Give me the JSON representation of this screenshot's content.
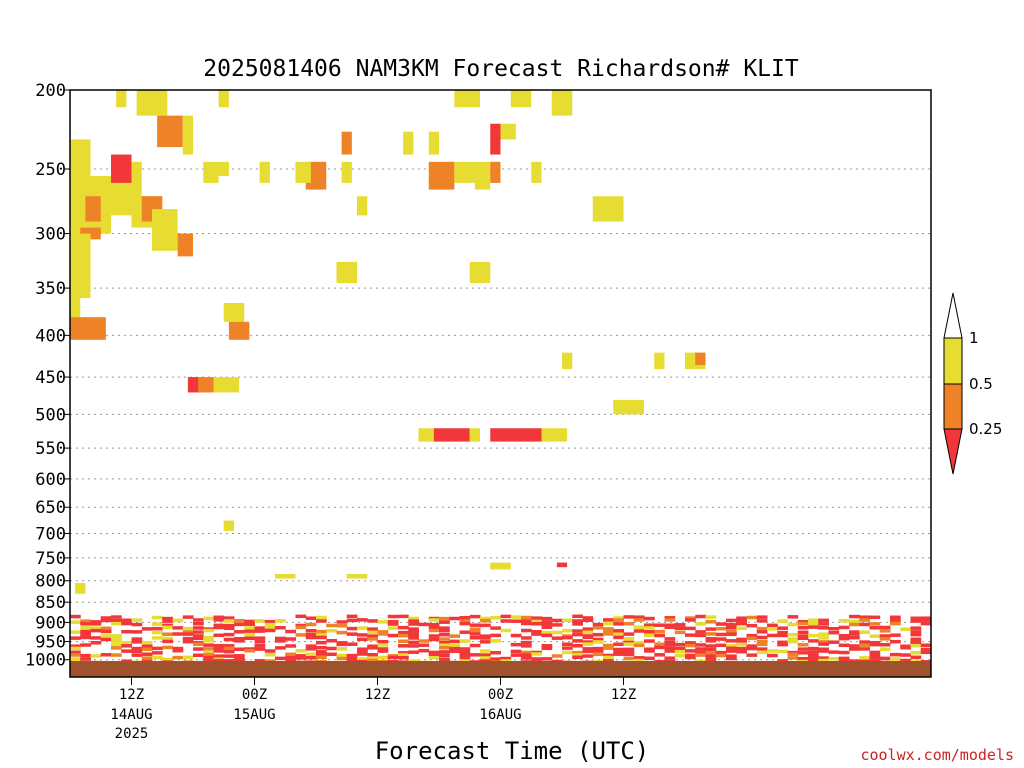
{
  "chart_data": {
    "type": "heatmap",
    "title": "2025081406 NAM3KM Forecast Richardson# KLIT",
    "xlabel": "Forecast Time (UTC)",
    "ylabel": "",
    "y_scale": "log-pressure",
    "y_range_hpa": [
      1050,
      200
    ],
    "y_ticks": [
      "200",
      "250",
      "300",
      "350",
      "400",
      "450",
      "500",
      "550",
      "600",
      "650",
      "700",
      "750",
      "800",
      "850",
      "900",
      "950",
      "1000"
    ],
    "x_range_hours": [
      0,
      84
    ],
    "x_ticks": [
      {
        "hour": 6,
        "label": "12Z",
        "sub": "14AUG",
        "sub2": "2025"
      },
      {
        "hour": 18,
        "label": "00Z",
        "sub": "15AUG",
        "sub2": ""
      },
      {
        "hour": 30,
        "label": "12Z",
        "sub": "",
        "sub2": ""
      },
      {
        "hour": 42,
        "label": "00Z",
        "sub": "16AUG",
        "sub2": ""
      },
      {
        "hour": 54,
        "label": "12Z",
        "sub": "",
        "sub2": ""
      }
    ],
    "grid": "dotted horizontal at pressure ticks",
    "legend": "colorbar right",
    "colorbar": {
      "labels": [
        "1",
        "0.5",
        "0.25"
      ],
      "colors": [
        "#ffffff",
        "#e6dc32",
        "#ee8226",
        "#f2373a"
      ]
    },
    "surface_color": "#a0522d",
    "cells": [
      {
        "h": [
          0,
          2
        ],
        "p": [
          310,
          230
        ],
        "c": "#e6dc32"
      },
      {
        "h": [
          2,
          4
        ],
        "p": [
          300,
          255
        ],
        "c": "#e6dc32"
      },
      {
        "h": [
          1.5,
          3
        ],
        "p": [
          290,
          270
        ],
        "c": "#ee8226"
      },
      {
        "h": [
          1,
          3
        ],
        "p": [
          305,
          295
        ],
        "c": "#ee8226"
      },
      {
        "h": [
          0,
          2
        ],
        "p": [
          360,
          300
        ],
        "c": "#e6dc32"
      },
      {
        "h": [
          0,
          1
        ],
        "p": [
          395,
          330
        ],
        "c": "#e6dc32"
      },
      {
        "h": [
          0,
          3.5
        ],
        "p": [
          405,
          380
        ],
        "c": "#ee8226"
      },
      {
        "h": [
          4,
          7
        ],
        "p": [
          285,
          245
        ],
        "c": "#e6dc32"
      },
      {
        "h": [
          4,
          6
        ],
        "p": [
          260,
          240
        ],
        "c": "#f2373a"
      },
      {
        "h": [
          6,
          9
        ],
        "p": [
          295,
          270
        ],
        "c": "#e6dc32"
      },
      {
        "h": [
          7,
          9
        ],
        "p": [
          290,
          270
        ],
        "c": "#ee8226"
      },
      {
        "h": [
          8,
          10.5
        ],
        "p": [
          315,
          280
        ],
        "c": "#e6dc32"
      },
      {
        "h": [
          10.5,
          12
        ],
        "p": [
          320,
          300
        ],
        "c": "#ee8226"
      },
      {
        "h": [
          8.5,
          11
        ],
        "p": [
          235,
          215
        ],
        "c": "#ee8226"
      },
      {
        "h": [
          6.5,
          9.5
        ],
        "p": [
          215,
          200
        ],
        "c": "#e6dc32"
      },
      {
        "h": [
          11,
          12
        ],
        "p": [
          240,
          215
        ],
        "c": "#e6dc32"
      },
      {
        "h": [
          4.5,
          5.5
        ],
        "p": [
          210,
          200
        ],
        "c": "#e6dc32"
      },
      {
        "h": [
          13,
          14.5
        ],
        "p": [
          260,
          245
        ],
        "c": "#e6dc32"
      },
      {
        "h": [
          14.5,
          15.5
        ],
        "p": [
          255,
          245
        ],
        "c": "#e6dc32"
      },
      {
        "h": [
          14.5,
          15.5
        ],
        "p": [
          210,
          200
        ],
        "c": "#e6dc32"
      },
      {
        "h": [
          15,
          17
        ],
        "p": [
          385,
          365
        ],
        "c": "#e6dc32"
      },
      {
        "h": [
          15.5,
          17.5
        ],
        "p": [
          405,
          385
        ],
        "c": "#ee8226"
      },
      {
        "h": [
          11.5,
          13
        ],
        "p": [
          470,
          450
        ],
        "c": "#f2373a"
      },
      {
        "h": [
          12.5,
          14
        ],
        "p": [
          470,
          450
        ],
        "c": "#ee8226"
      },
      {
        "h": [
          14,
          16.5
        ],
        "p": [
          470,
          450
        ],
        "c": "#e6dc32"
      },
      {
        "h": [
          18.5,
          19.5
        ],
        "p": [
          260,
          245
        ],
        "c": "#e6dc32"
      },
      {
        "h": [
          23,
          25
        ],
        "p": [
          265,
          245
        ],
        "c": "#ee8226"
      },
      {
        "h": [
          22,
          23.5
        ],
        "p": [
          260,
          245
        ],
        "c": "#e6dc32"
      },
      {
        "h": [
          26.5,
          27.5
        ],
        "p": [
          240,
          225
        ],
        "c": "#ee8226"
      },
      {
        "h": [
          26.5,
          27.5
        ],
        "p": [
          260,
          245
        ],
        "c": "#e6dc32"
      },
      {
        "h": [
          28,
          29
        ],
        "p": [
          285,
          270
        ],
        "c": "#e6dc32"
      },
      {
        "h": [
          26,
          28
        ],
        "p": [
          345,
          325
        ],
        "c": "#e6dc32"
      },
      {
        "h": [
          32.5,
          33.5
        ],
        "p": [
          240,
          225
        ],
        "c": "#e6dc32"
      },
      {
        "h": [
          35,
          36
        ],
        "p": [
          240,
          225
        ],
        "c": "#e6dc32"
      },
      {
        "h": [
          35,
          37.5
        ],
        "p": [
          265,
          245
        ],
        "c": "#ee8226"
      },
      {
        "h": [
          37.5,
          39.5
        ],
        "p": [
          260,
          245
        ],
        "c": "#e6dc32"
      },
      {
        "h": [
          39.5,
          41
        ],
        "p": [
          265,
          245
        ],
        "c": "#e6dc32"
      },
      {
        "h": [
          41,
          42
        ],
        "p": [
          260,
          245
        ],
        "c": "#ee8226"
      },
      {
        "h": [
          37.5,
          40
        ],
        "p": [
          210,
          200
        ],
        "c": "#e6dc32"
      },
      {
        "h": [
          41,
          42
        ],
        "p": [
          240,
          220
        ],
        "c": "#f2373a"
      },
      {
        "h": [
          42,
          43.5
        ],
        "p": [
          230,
          220
        ],
        "c": "#e6dc32"
      },
      {
        "h": [
          43,
          45
        ],
        "p": [
          210,
          200
        ],
        "c": "#e6dc32"
      },
      {
        "h": [
          45,
          46
        ],
        "p": [
          260,
          245
        ],
        "c": "#e6dc32"
      },
      {
        "h": [
          47,
          49
        ],
        "p": [
          215,
          200
        ],
        "c": "#e6dc32"
      },
      {
        "h": [
          39,
          41
        ],
        "p": [
          345,
          325
        ],
        "c": "#e6dc32"
      },
      {
        "h": [
          51,
          54
        ],
        "p": [
          290,
          270
        ],
        "c": "#e6dc32"
      },
      {
        "h": [
          34,
          36
        ],
        "p": [
          540,
          520
        ],
        "c": "#e6dc32"
      },
      {
        "h": [
          35.5,
          39
        ],
        "p": [
          540,
          520
        ],
        "c": "#f2373a"
      },
      {
        "h": [
          39,
          40
        ],
        "p": [
          540,
          520
        ],
        "c": "#e6dc32"
      },
      {
        "h": [
          41,
          46
        ],
        "p": [
          540,
          520
        ],
        "c": "#f2373a"
      },
      {
        "h": [
          46,
          48.5
        ],
        "p": [
          540,
          520
        ],
        "c": "#e6dc32"
      },
      {
        "h": [
          53,
          56
        ],
        "p": [
          500,
          480
        ],
        "c": "#e6dc32"
      },
      {
        "h": [
          48,
          49
        ],
        "p": [
          440,
          420
        ],
        "c": "#e6dc32"
      },
      {
        "h": [
          57,
          58
        ],
        "p": [
          440,
          420
        ],
        "c": "#e6dc32"
      },
      {
        "h": [
          60,
          62
        ],
        "p": [
          440,
          420
        ],
        "c": "#e6dc32"
      },
      {
        "h": [
          61,
          62
        ],
        "p": [
          435,
          420
        ],
        "c": "#ee8226"
      },
      {
        "h": [
          15,
          16
        ],
        "p": [
          695,
          675
        ],
        "c": "#e6dc32"
      },
      {
        "h": [
          41,
          43
        ],
        "p": [
          775,
          760
        ],
        "c": "#e6dc32"
      },
      {
        "h": [
          47.5,
          48.5
        ],
        "p": [
          770,
          760
        ],
        "c": "#f2373a"
      },
      {
        "h": [
          0.5,
          1.5
        ],
        "p": [
          830,
          805
        ],
        "c": "#e6dc32"
      },
      {
        "h": [
          20,
          22
        ],
        "p": [
          795,
          785
        ],
        "c": "#e6dc32"
      },
      {
        "h": [
          27,
          29
        ],
        "p": [
          795,
          785
        ],
        "c": "#e6dc32"
      }
    ]
  },
  "credit": "coolwx.com/models"
}
